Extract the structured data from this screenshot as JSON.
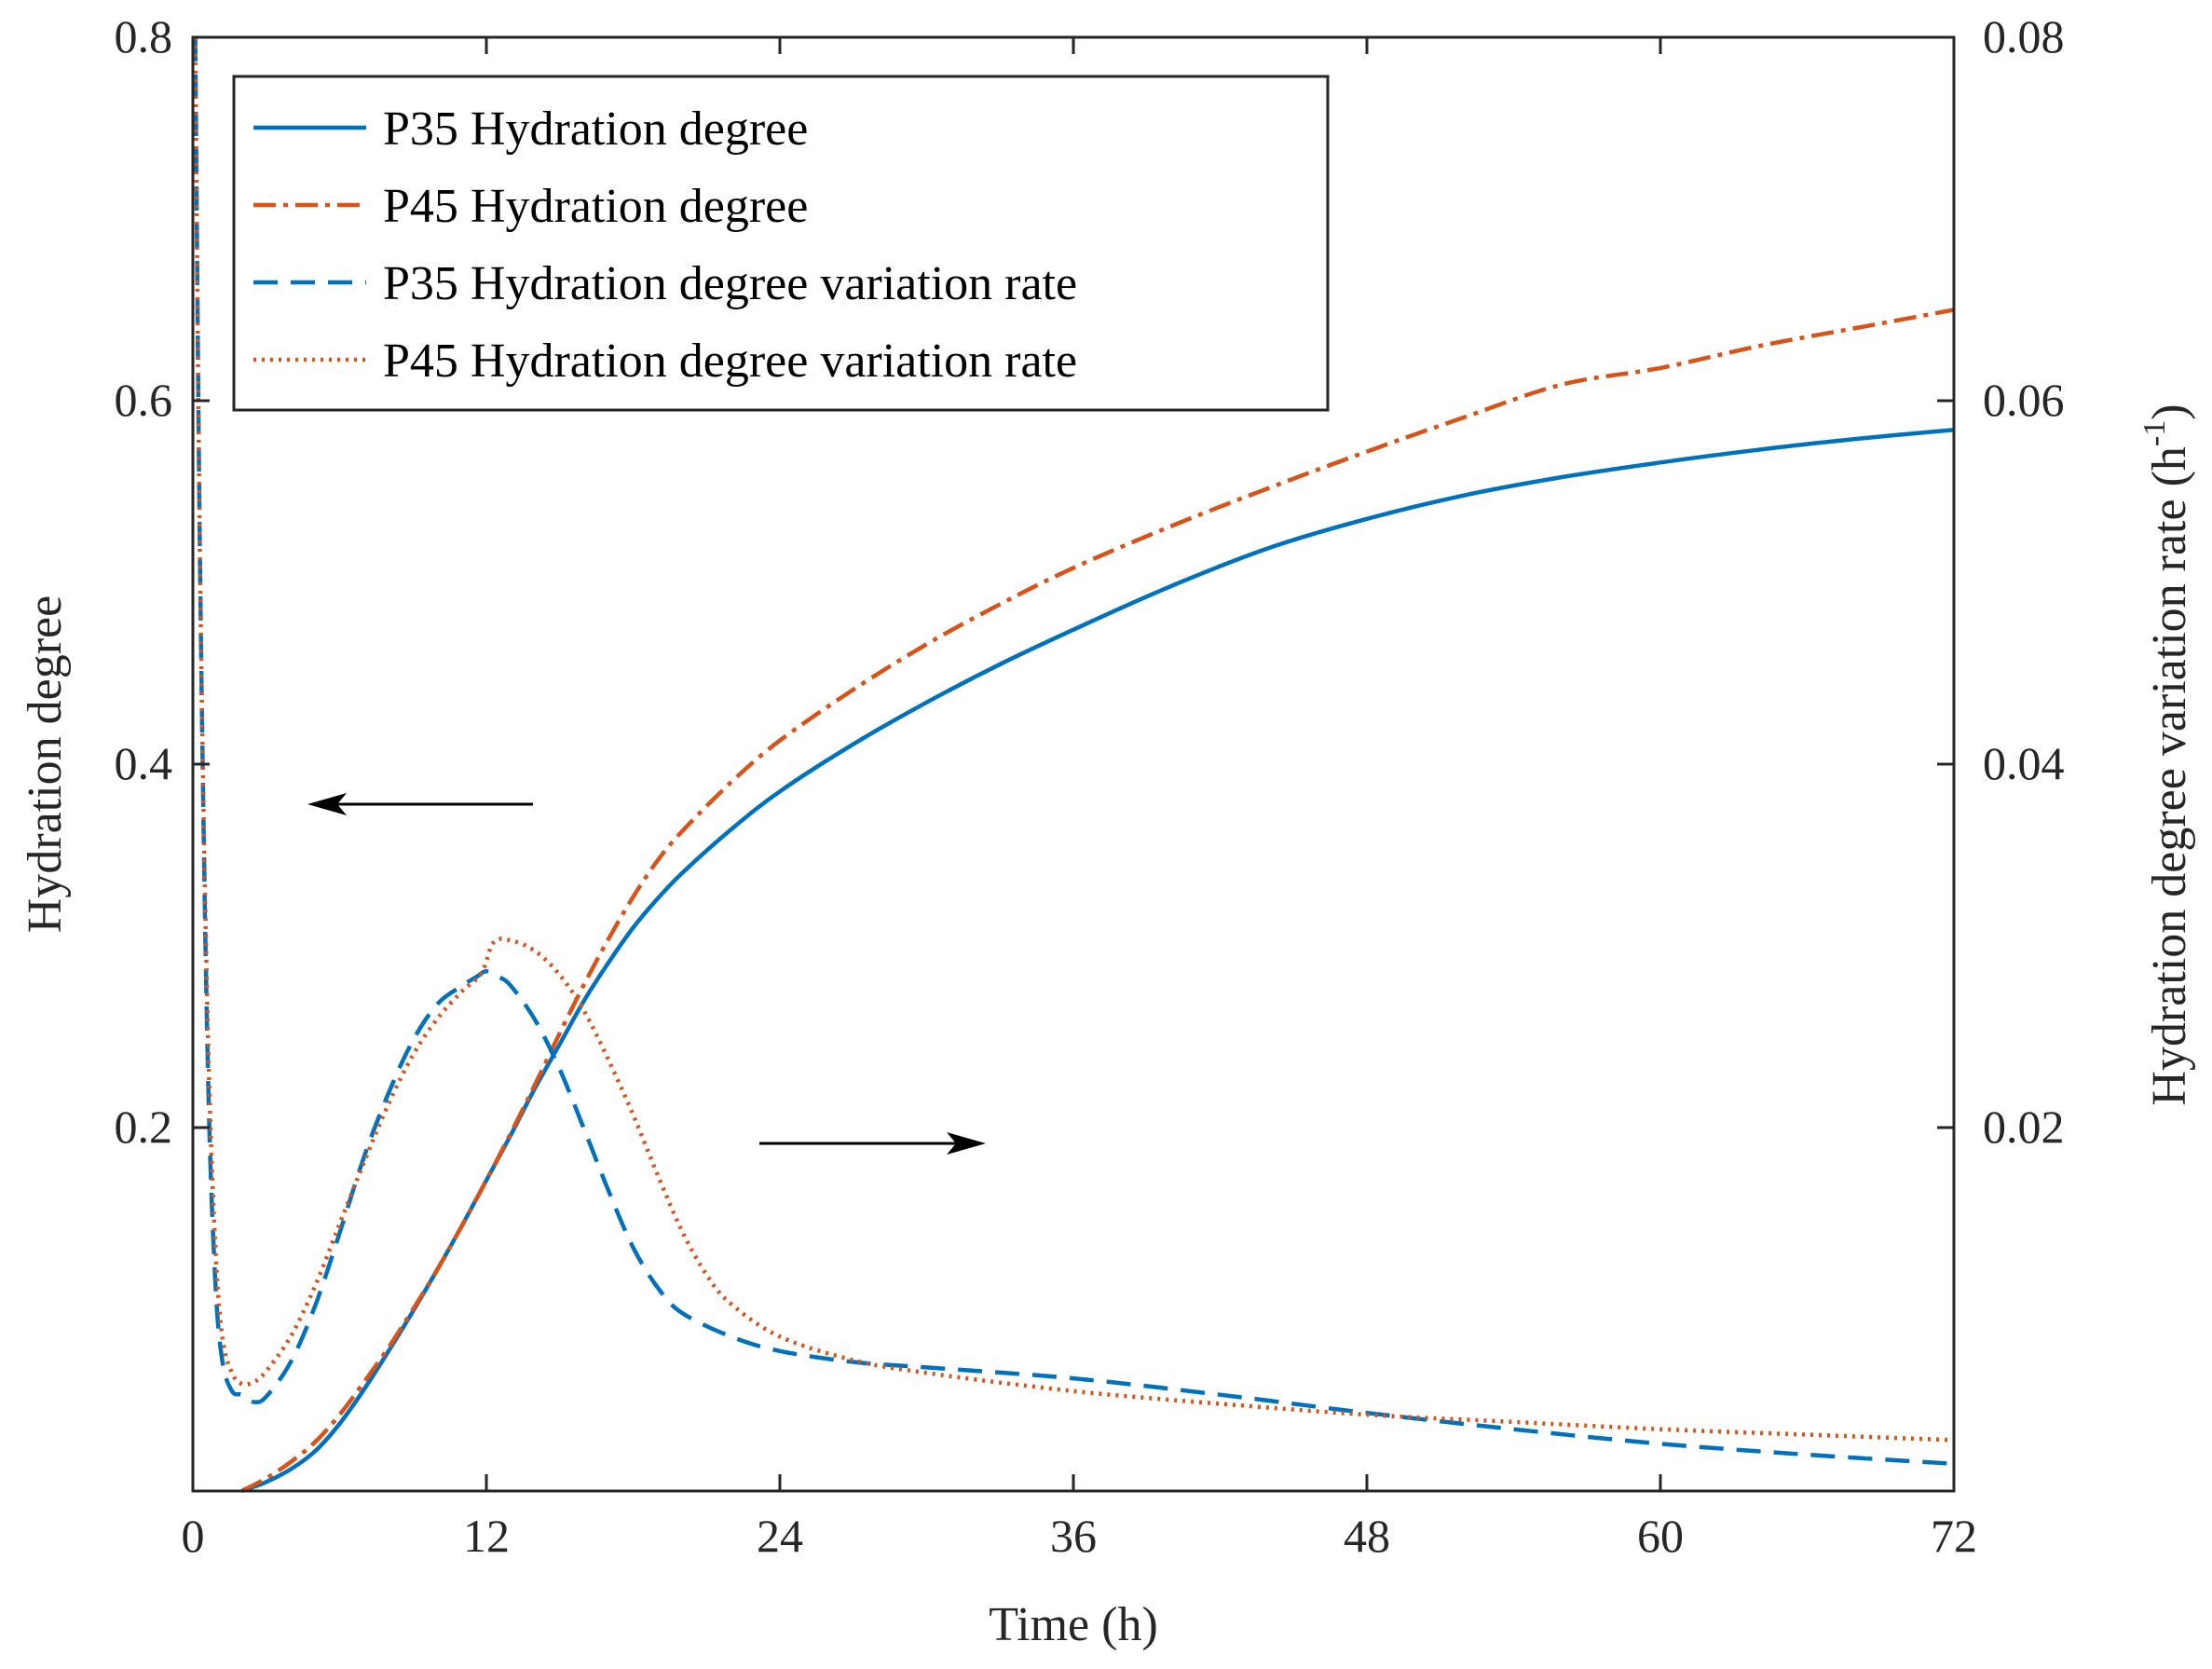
{
  "chart_data": {
    "type": "line",
    "title": "",
    "xlabel": "Time (h)",
    "ylabel": "Hydration degree",
    "ylabel_right": "Hydration degree variation rate (h",
    "ylabel_right_sup": "-1",
    "ylabel_right_close": ")",
    "xlim": [
      0,
      72
    ],
    "ylim": [
      0,
      0.8
    ],
    "ylim_right": [
      0,
      0.08
    ],
    "xticks": [
      "0",
      "12",
      "24",
      "36",
      "48",
      "60",
      "72"
    ],
    "yticks": [
      "0.2",
      "0.4",
      "0.6",
      "0.8"
    ],
    "yticks_right": [
      "0.02",
      "0.04",
      "0.06",
      "0.08"
    ],
    "grid": false,
    "legend_position": "top-left",
    "series": [
      {
        "name": "P35 Hydration degree",
        "axis": "left",
        "color": "#0072BD",
        "style": "solid",
        "x": [
          2,
          3,
          4,
          5,
          6,
          7,
          8,
          9,
          10,
          11,
          12,
          13,
          14,
          15,
          16,
          17,
          18,
          19,
          20,
          22,
          24,
          27,
          30,
          33,
          36,
          40,
          44,
          48,
          52,
          56,
          60,
          64,
          68,
          72
        ],
        "y": [
          0.0,
          0.005,
          0.012,
          0.022,
          0.037,
          0.056,
          0.077,
          0.099,
          0.122,
          0.146,
          0.171,
          0.196,
          0.222,
          0.246,
          0.27,
          0.291,
          0.31,
          0.326,
          0.34,
          0.364,
          0.385,
          0.411,
          0.434,
          0.455,
          0.474,
          0.498,
          0.519,
          0.535,
          0.548,
          0.558,
          0.566,
          0.573,
          0.579,
          0.584
        ]
      },
      {
        "name": "P45 Hydration degree",
        "axis": "left",
        "color": "#D95319",
        "style": "dashdot",
        "x": [
          2,
          3,
          4,
          5,
          6,
          7,
          8,
          9,
          10,
          11,
          12,
          13,
          14,
          15,
          16,
          17,
          18,
          19,
          20,
          22,
          24,
          27,
          30,
          33,
          36,
          40,
          44,
          48,
          52,
          56,
          60,
          64,
          68,
          72
        ],
        "y": [
          0.0,
          0.007,
          0.016,
          0.027,
          0.042,
          0.06,
          0.079,
          0.1,
          0.122,
          0.146,
          0.171,
          0.197,
          0.224,
          0.252,
          0.279,
          0.304,
          0.327,
          0.347,
          0.363,
          0.39,
          0.413,
          0.441,
          0.466,
          0.488,
          0.508,
          0.531,
          0.552,
          0.572,
          0.591,
          0.609,
          0.618,
          0.63,
          0.64,
          0.65
        ]
      },
      {
        "name": "P35 Hydration degree variation rate",
        "axis": "right",
        "color": "#0072BD",
        "style": "dashed",
        "x": [
          0.1,
          0.3,
          0.6,
          0.9,
          1.2,
          1.6,
          2.0,
          2.5,
          3.0,
          4.0,
          5.0,
          6.0,
          7.0,
          8.0,
          9.0,
          10.0,
          11.0,
          11.6,
          12.0,
          12.5,
          13.0,
          14.0,
          15.0,
          16.0,
          17.0,
          18.0,
          19.0,
          20.0,
          22.0,
          24.0,
          27.0,
          30.0,
          36.0,
          42.0,
          48.0,
          54.0,
          60.0,
          66.0,
          72.0
        ],
        "y": [
          0.08,
          0.05,
          0.024,
          0.012,
          0.0072,
          0.0055,
          0.0053,
          0.0049,
          0.0052,
          0.0071,
          0.0102,
          0.0142,
          0.0184,
          0.0219,
          0.0248,
          0.0268,
          0.0278,
          0.0283,
          0.0286,
          0.0283,
          0.0278,
          0.0259,
          0.0232,
          0.0199,
          0.0165,
          0.0134,
          0.0112,
          0.0098,
          0.0085,
          0.0077,
          0.0071,
          0.0068,
          0.0062,
          0.0053,
          0.0043,
          0.0034,
          0.0026,
          0.002,
          0.0015
        ]
      },
      {
        "name": "P45 Hydration degree variation rate",
        "axis": "right",
        "color": "#D95319",
        "style": "dotted",
        "x": [
          0.1,
          0.3,
          0.6,
          0.9,
          1.2,
          1.6,
          2.0,
          2.5,
          3.0,
          4.0,
          5.0,
          6.0,
          7.0,
          8.0,
          9.0,
          10.0,
          11.0,
          11.8,
          12.3,
          13.0,
          14.0,
          15.0,
          16.0,
          17.0,
          18.0,
          19.0,
          20.0,
          21.0,
          22.0,
          24.0,
          27.0,
          30.0,
          36.0,
          42.0,
          48.0,
          54.0,
          60.0,
          66.0,
          72.0
        ],
        "y": [
          0.08,
          0.05,
          0.026,
          0.014,
          0.0085,
          0.0065,
          0.0059,
          0.006,
          0.0066,
          0.0085,
          0.0113,
          0.0147,
          0.0181,
          0.0213,
          0.024,
          0.026,
          0.0275,
          0.0285,
          0.0302,
          0.0303,
          0.0297,
          0.0284,
          0.0264,
          0.0237,
          0.0207,
          0.0174,
          0.0143,
          0.0119,
          0.0103,
          0.0085,
          0.0072,
          0.0065,
          0.0055,
          0.0048,
          0.0042,
          0.0038,
          0.0034,
          0.0031,
          0.0028
        ]
      }
    ],
    "annotations": [
      {
        "type": "arrow",
        "direction": "left",
        "points_to": "left axis"
      },
      {
        "type": "arrow",
        "direction": "right",
        "points_to": "right axis"
      }
    ]
  }
}
